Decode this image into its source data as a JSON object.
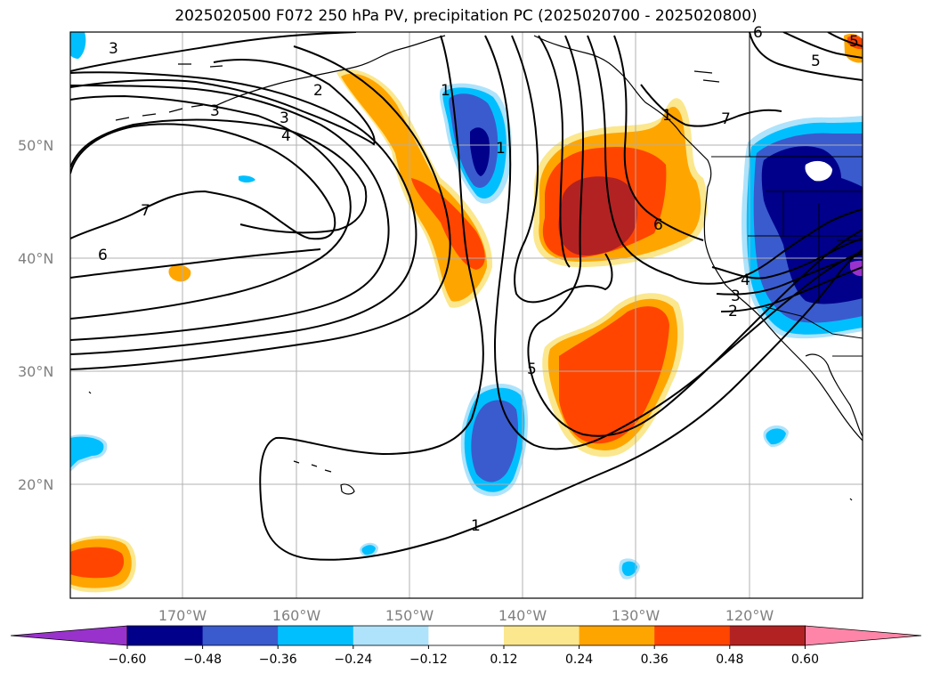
{
  "title": "2025020500 F072 250 hPa PV, precipitation PC (2025020700 - 2025020800)",
  "lat_labels": [
    "50°N",
    "40°N",
    "30°N",
    "20°N"
  ],
  "lon_labels": [
    "170°W",
    "160°W",
    "150°W",
    "140°W",
    "130°W",
    "120°W"
  ],
  "colorbar": {
    "tick_labels": [
      "−0.60",
      "−0.48",
      "−0.36",
      "−0.24",
      "−0.12",
      "0.12",
      "0.24",
      "0.36",
      "0.48",
      "0.60"
    ],
    "colors": [
      "#9932cc",
      "#00008b",
      "#3a5bcd",
      "#00bfff",
      "#aee3fb",
      "#ffffff",
      "#fbe78e",
      "#ffa500",
      "#ff4500",
      "#b22222",
      "#ff85a8"
    ]
  },
  "contour_labels": [
    "3",
    "2",
    "3",
    "3",
    "4",
    "7",
    "6",
    "1",
    "1",
    "5",
    "7",
    "6",
    "4",
    "3",
    "2",
    "1",
    "5",
    "6",
    "5",
    "1"
  ]
}
